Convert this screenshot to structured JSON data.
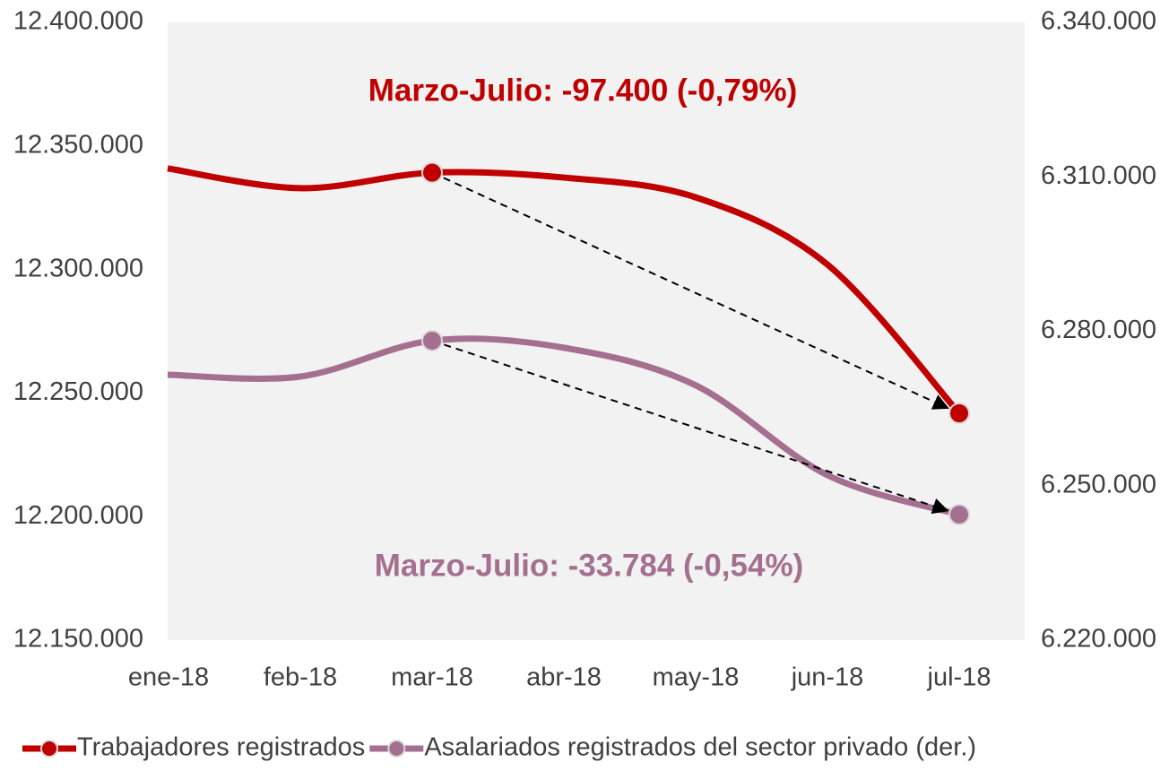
{
  "chart_data": {
    "type": "line",
    "categories": [
      "ene-18",
      "feb-18",
      "mar-18",
      "abr-18",
      "may-18",
      "jun-18",
      "jul-18"
    ],
    "series": [
      {
        "name": "Trabajadores registrados",
        "color": "#c00000",
        "values": [
          12340900,
          12332900,
          12339200,
          12337200,
          12329200,
          12302000,
          12241800
        ]
      },
      {
        "name": "Asalariados registrados del sector privado (der.)",
        "color": "#a5708f",
        "axis": "y2",
        "values": [
          6271560,
          6271200,
          6278170,
          6276800,
          6269500,
          6252050,
          6244386
        ]
      }
    ],
    "ylim": [
      12150000,
      12400000
    ],
    "yticks": [
      {
        "value": 12150000,
        "label": "12.150.000"
      },
      {
        "value": 12200000,
        "label": "12.200.000"
      },
      {
        "value": 12250000,
        "label": "12.250.000"
      },
      {
        "value": 12300000,
        "label": "12.300.000"
      },
      {
        "value": 12350000,
        "label": "12.350.000"
      },
      {
        "value": 12400000,
        "label": "12.400.000"
      }
    ],
    "y2lim": [
      6220000,
      6340000
    ],
    "y2ticks": [
      {
        "value": 6220000,
        "label": "6.220.000"
      },
      {
        "value": 6250000,
        "label": "6.250.000"
      },
      {
        "value": 6280000,
        "label": "6.280.000"
      },
      {
        "value": 6310000,
        "label": "6.310.000"
      },
      {
        "value": 6340000,
        "label": "6.340.000"
      }
    ],
    "annotations": [
      "Marzo-Julio: -97.400 (-0,79%)",
      "Marzo-Julio: -33.784 (-0,54%)"
    ],
    "plot_background": "#f2f2f2",
    "legend": "bottom"
  }
}
